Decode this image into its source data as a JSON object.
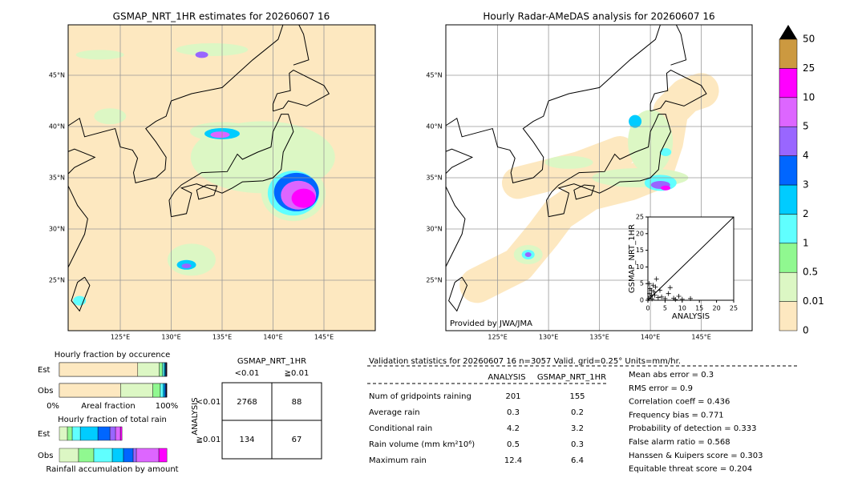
{
  "left_map": {
    "title": "GSMAP_NRT_1HR estimates for 20260607 16",
    "lon_labels": [
      "125°E",
      "130°E",
      "135°E",
      "140°E",
      "145°E"
    ],
    "lat_labels": [
      "45°N",
      "40°N",
      "35°N",
      "30°N",
      "25°N"
    ]
  },
  "right_map": {
    "title": "Hourly Radar-AMeDAS analysis for 20260607 16",
    "lon_labels": [
      "125°E",
      "130°E",
      "135°E",
      "140°E",
      "145°E"
    ],
    "lat_labels": [
      "45°N",
      "40°N",
      "35°N",
      "30°N",
      "25°N"
    ],
    "credit": "Provided by JWA/JMA"
  },
  "scatter": {
    "xlabel": "ANALYSIS",
    "ylabel": "GSMAP_NRT_1HR",
    "lim": [
      0,
      25
    ],
    "ticks": [
      0,
      5,
      10,
      15,
      20,
      25
    ],
    "x": [
      0.3,
      0.5,
      0.8,
      1,
      1.2,
      1.5,
      2,
      2.5,
      3,
      0.6,
      1.8,
      4,
      5,
      6,
      7.5,
      9,
      10,
      12.4,
      2.2,
      3.5,
      0.4,
      1.1,
      6.5,
      8
    ],
    "y": [
      0.5,
      2,
      1,
      3,
      0.4,
      4.5,
      1.5,
      6.4,
      0.8,
      3.5,
      2.5,
      1,
      0.5,
      2,
      0.6,
      1.2,
      0.3,
      0.5,
      4,
      3,
      5,
      1.6,
      3.8,
      0.2
    ]
  },
  "colorbar": {
    "levels": [
      "0",
      "0.01",
      "0.5",
      "1",
      "2",
      "3",
      "4",
      "5",
      "10",
      "25",
      "50"
    ],
    "colors": [
      "#fde8c0",
      "#dcf7c4",
      "#90f890",
      "#60ffff",
      "#00ccff",
      "#0066ff",
      "#9966ff",
      "#dd66ff",
      "#ff00ff",
      "#cc9940"
    ]
  },
  "occurrence": {
    "title": "Hourly fraction by occurence",
    "rows": [
      "Est",
      "Obs"
    ],
    "est": [
      73,
      20,
      3,
      1.5,
      1,
      0.5,
      0.3,
      0.3,
      0.3,
      0.1
    ],
    "obs": [
      57,
      30,
      7,
      2.5,
      1.5,
      1,
      0.5,
      0.3,
      0.2,
      0
    ],
    "axis_left": "0%",
    "axis_label": "Areal fraction",
    "axis_right": "100%"
  },
  "total_rain": {
    "title": "Hourly fraction of total rain",
    "rows": [
      "Est",
      "Obs"
    ],
    "est": [
      0,
      7.5,
      4.5,
      7.5,
      16.4,
      11.2,
      5.2,
      4.5,
      1.5,
      0
    ],
    "obs": [
      0,
      17.9,
      14.2,
      17.2,
      10.4,
      9,
      3,
      20.9,
      7.5,
      0
    ],
    "footer": "Rainfall accumulation by amount"
  },
  "contingency": {
    "column_title": "GSMAP_NRT_1HR",
    "columns": [
      "<0.01",
      "≧0.01"
    ],
    "row_title": "ANALYSIS",
    "rows": [
      "<0.01",
      "≧0.01"
    ],
    "cells": [
      [
        2768,
        88
      ],
      [
        134,
        67
      ]
    ]
  },
  "validation": {
    "header": "Validation statistics for 20260607 16  n=3057 Valid. grid=0.25° Units=mm/hr.",
    "columns": [
      "ANALYSIS",
      "GSMAP_NRT_1HR"
    ],
    "rows": [
      {
        "label": "Num of gridpoints raining",
        "values": [
          201,
          155
        ]
      },
      {
        "label": "Average rain",
        "values": [
          0.3,
          0.2
        ]
      },
      {
        "label": "Conditional rain",
        "values": [
          4.2,
          3.2
        ]
      },
      {
        "label": "Rain volume (mm km²10⁶)",
        "values": [
          0.5,
          0.3
        ]
      },
      {
        "label": "Maximum rain",
        "values": [
          12.4,
          6.4
        ]
      }
    ],
    "scores": [
      "Mean abs error =    0.3",
      "RMS error =    0.9",
      "Correlation coeff =  0.436",
      "Frequency bias =  0.771",
      "Probability of detection =  0.333",
      "False alarm ratio =  0.568",
      "Hanssen & Kuipers score =  0.303",
      "Equitable threat score =  0.204"
    ]
  }
}
